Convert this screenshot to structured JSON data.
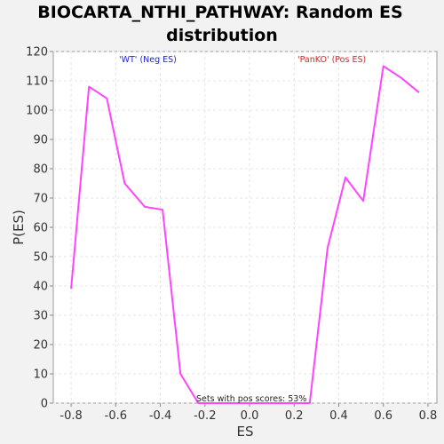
{
  "chart_data": {
    "type": "line",
    "title_line1": "BIOCARTA_NTHI_PATHWAY: Random ES",
    "title_line2": "distribution",
    "xlabel": "ES",
    "ylabel": "P(ES)",
    "xlim": [
      -0.88,
      0.84
    ],
    "ylim": [
      0,
      120
    ],
    "x_ticks": [
      -0.8,
      -0.6,
      -0.4,
      -0.2,
      0.0,
      0.2,
      0.4,
      0.6,
      0.8
    ],
    "x_tick_labels": [
      "-0.8",
      "-0.6",
      "-0.4",
      "-0.2",
      "0.0",
      "0.2",
      "0.4",
      "0.6",
      "0.8"
    ],
    "y_ticks": [
      0,
      10,
      20,
      30,
      40,
      50,
      60,
      70,
      80,
      90,
      100,
      110,
      120
    ],
    "y_tick_labels": [
      "0",
      "10",
      "20",
      "30",
      "40",
      "50",
      "60",
      "70",
      "80",
      "90",
      "100",
      "110",
      "120"
    ],
    "grid": true,
    "series": [
      {
        "color": "#ff44ff",
        "x": [
          -0.8,
          -0.72,
          -0.64,
          -0.56,
          -0.47,
          -0.39,
          -0.31,
          -0.23,
          -0.15,
          -0.06,
          0.02,
          0.1,
          0.18,
          0.27,
          0.35,
          0.43,
          0.51,
          0.6,
          0.68,
          0.76
        ],
        "y": [
          39,
          108,
          104,
          75,
          67,
          66,
          10,
          0,
          0,
          0,
          0,
          0,
          0,
          0,
          53,
          77,
          69,
          115,
          111,
          106
        ]
      }
    ],
    "annotations": [
      {
        "text": "'WT' (Neg ES)",
        "color": "#2222dd"
      },
      {
        "text": "'PanKO' (Pos ES)",
        "color": "#dd2222"
      }
    ],
    "footer": "Sets with pos scores: 53%"
  }
}
